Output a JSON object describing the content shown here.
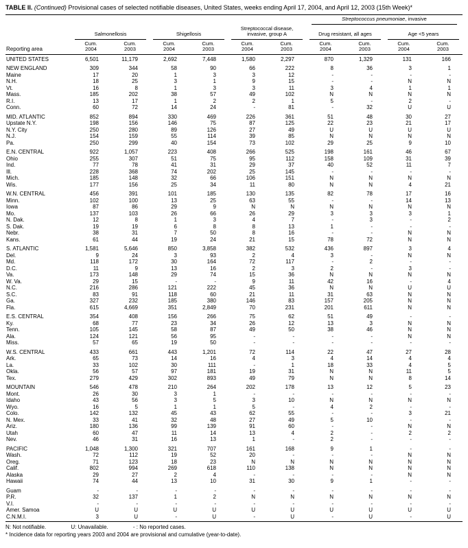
{
  "title": {
    "bold": "TABLE II.",
    "italic": "(Continued)",
    "rest": "Provisional cases of selected notifiable diseases, United States, weeks ending April 17, 2004, and April 12, 2003 (15th Week)*"
  },
  "table": {
    "reporting_area_label": "Reporting area",
    "groups": {
      "salmonellosis": "Salmonellosis",
      "shigellosis": "Shigellosis",
      "strep_a": "Streptococcal disease, invasive, group A",
      "pneumo_italic": "Streptococcus pneumoniae",
      "pneumo_rest": ", invasive",
      "drug_resistant": "Drug resistant, all ages",
      "age_lt5": "Age <5 years"
    },
    "subheader": {
      "cum": "Cum.",
      "year_a": "2004",
      "year_b": "2003"
    },
    "rows": [
      {
        "area": "UNITED STATES",
        "kind": "total",
        "v": [
          "6,501",
          "11,179",
          "2,692",
          "7,448",
          "1,580",
          "2,297",
          "870",
          "1,329",
          "131",
          "166"
        ]
      },
      {
        "kind": "spacer"
      },
      {
        "area": "NEW ENGLAND",
        "kind": "region",
        "v": [
          "309",
          "344",
          "58",
          "90",
          "66",
          "222",
          "8",
          "36",
          "3",
          "1"
        ]
      },
      {
        "area": "Maine",
        "kind": "state",
        "v": [
          "17",
          "20",
          "1",
          "3",
          "3",
          "12",
          "-",
          "-",
          "-",
          "-"
        ]
      },
      {
        "area": "N.H.",
        "kind": "state",
        "v": [
          "18",
          "25",
          "3",
          "1",
          "9",
          "15",
          "-",
          "-",
          "N",
          "N"
        ]
      },
      {
        "area": "Vt.",
        "kind": "state",
        "v": [
          "16",
          "8",
          "1",
          "3",
          "3",
          "11",
          "3",
          "4",
          "1",
          "1"
        ]
      },
      {
        "area": "Mass.",
        "kind": "state",
        "v": [
          "185",
          "202",
          "38",
          "57",
          "49",
          "102",
          "N",
          "N",
          "N",
          "N"
        ]
      },
      {
        "area": "R.I.",
        "kind": "state",
        "v": [
          "13",
          "17",
          "1",
          "2",
          "2",
          "1",
          "5",
          "-",
          "2",
          "-"
        ]
      },
      {
        "area": "Conn.",
        "kind": "state",
        "v": [
          "60",
          "72",
          "14",
          "24",
          "-",
          "81",
          "-",
          "32",
          "U",
          "U"
        ]
      },
      {
        "kind": "spacer"
      },
      {
        "area": "MID. ATLANTIC",
        "kind": "region",
        "v": [
          "852",
          "894",
          "330",
          "469",
          "226",
          "361",
          "51",
          "48",
          "30",
          "27"
        ]
      },
      {
        "area": "Upstate N.Y.",
        "kind": "state",
        "v": [
          "198",
          "156",
          "146",
          "75",
          "87",
          "125",
          "22",
          "23",
          "21",
          "17"
        ]
      },
      {
        "area": "N.Y. City",
        "kind": "state",
        "v": [
          "250",
          "280",
          "89",
          "126",
          "27",
          "49",
          "U",
          "U",
          "U",
          "U"
        ]
      },
      {
        "area": "N.J.",
        "kind": "state",
        "v": [
          "154",
          "159",
          "55",
          "114",
          "39",
          "85",
          "N",
          "N",
          "N",
          "N"
        ]
      },
      {
        "area": "Pa.",
        "kind": "state",
        "v": [
          "250",
          "299",
          "40",
          "154",
          "73",
          "102",
          "29",
          "25",
          "9",
          "10"
        ]
      },
      {
        "kind": "spacer"
      },
      {
        "area": "E.N. CENTRAL",
        "kind": "region",
        "v": [
          "922",
          "1,057",
          "223",
          "408",
          "266",
          "525",
          "198",
          "161",
          "46",
          "67"
        ]
      },
      {
        "area": "Ohio",
        "kind": "state",
        "v": [
          "255",
          "307",
          "51",
          "75",
          "95",
          "112",
          "158",
          "109",
          "31",
          "39"
        ]
      },
      {
        "area": "Ind.",
        "kind": "state",
        "v": [
          "77",
          "78",
          "41",
          "31",
          "29",
          "37",
          "40",
          "52",
          "11",
          "7"
        ]
      },
      {
        "area": "Ill.",
        "kind": "state",
        "v": [
          "228",
          "368",
          "74",
          "202",
          "25",
          "145",
          "-",
          "-",
          "-",
          "-"
        ]
      },
      {
        "area": "Mich.",
        "kind": "state",
        "v": [
          "185",
          "148",
          "32",
          "66",
          "106",
          "151",
          "N",
          "N",
          "N",
          "N"
        ]
      },
      {
        "area": "Wis.",
        "kind": "state",
        "v": [
          "177",
          "156",
          "25",
          "34",
          "11",
          "80",
          "N",
          "N",
          "4",
          "21"
        ]
      },
      {
        "kind": "spacer"
      },
      {
        "area": "W.N. CENTRAL",
        "kind": "region",
        "v": [
          "456",
          "391",
          "101",
          "185",
          "130",
          "135",
          "82",
          "78",
          "17",
          "16"
        ]
      },
      {
        "area": "Minn.",
        "kind": "state",
        "v": [
          "102",
          "100",
          "13",
          "25",
          "63",
          "55",
          "-",
          "-",
          "14",
          "13"
        ]
      },
      {
        "area": "Iowa",
        "kind": "state",
        "v": [
          "87",
          "86",
          "29",
          "9",
          "N",
          "N",
          "N",
          "N",
          "N",
          "N"
        ]
      },
      {
        "area": "Mo.",
        "kind": "state",
        "v": [
          "137",
          "103",
          "26",
          "66",
          "26",
          "29",
          "3",
          "3",
          "3",
          "1"
        ]
      },
      {
        "area": "N. Dak.",
        "kind": "state",
        "v": [
          "12",
          "8",
          "1",
          "3",
          "4",
          "7",
          "-",
          "3",
          "-",
          "2"
        ]
      },
      {
        "area": "S. Dak.",
        "kind": "state",
        "v": [
          "19",
          "19",
          "6",
          "8",
          "8",
          "13",
          "1",
          "-",
          "-",
          "-"
        ]
      },
      {
        "area": "Nebr.",
        "kind": "state",
        "v": [
          "38",
          "31",
          "7",
          "50",
          "8",
          "16",
          "-",
          "-",
          "N",
          "N"
        ]
      },
      {
        "area": "Kans.",
        "kind": "state",
        "v": [
          "61",
          "44",
          "19",
          "24",
          "21",
          "15",
          "78",
          "72",
          "N",
          "N"
        ]
      },
      {
        "kind": "spacer"
      },
      {
        "area": "S. ATLANTIC",
        "kind": "region",
        "v": [
          "1,581",
          "5,646",
          "850",
          "3,858",
          "382",
          "532",
          "436",
          "897",
          "3",
          "4"
        ]
      },
      {
        "area": "Del.",
        "kind": "state",
        "v": [
          "9",
          "24",
          "3",
          "93",
          "2",
          "4",
          "3",
          "-",
          "N",
          "N"
        ]
      },
      {
        "area": "Md.",
        "kind": "state",
        "v": [
          "118",
          "172",
          "30",
          "164",
          "72",
          "117",
          "-",
          "2",
          "-",
          "-"
        ]
      },
      {
        "area": "D.C.",
        "kind": "state",
        "v": [
          "11",
          "9",
          "13",
          "16",
          "2",
          "3",
          "2",
          "-",
          "3",
          "-"
        ]
      },
      {
        "area": "Va.",
        "kind": "state",
        "v": [
          "173",
          "148",
          "29",
          "74",
          "15",
          "36",
          "N",
          "N",
          "N",
          "N"
        ]
      },
      {
        "area": "W. Va.",
        "kind": "state",
        "v": [
          "29",
          "15",
          "-",
          "-",
          "9",
          "11",
          "42",
          "16",
          "-",
          "4"
        ]
      },
      {
        "area": "N.C.",
        "kind": "state",
        "v": [
          "216",
          "286",
          "121",
          "222",
          "45",
          "36",
          "N",
          "N",
          "U",
          "U"
        ]
      },
      {
        "area": "S.C.",
        "kind": "state",
        "v": [
          "83",
          "91",
          "118",
          "60",
          "21",
          "11",
          "31",
          "63",
          "N",
          "N"
        ]
      },
      {
        "area": "Ga.",
        "kind": "state",
        "v": [
          "327",
          "232",
          "185",
          "380",
          "146",
          "83",
          "157",
          "205",
          "N",
          "N"
        ]
      },
      {
        "area": "Fla.",
        "kind": "state",
        "v": [
          "615",
          "4,669",
          "351",
          "2,849",
          "70",
          "231",
          "201",
          "611",
          "N",
          "N"
        ]
      },
      {
        "kind": "spacer"
      },
      {
        "area": "E.S. CENTRAL",
        "kind": "region",
        "v": [
          "354",
          "408",
          "156",
          "266",
          "75",
          "62",
          "51",
          "49",
          "-",
          "-"
        ]
      },
      {
        "area": "Ky.",
        "kind": "state",
        "v": [
          "68",
          "77",
          "23",
          "34",
          "26",
          "12",
          "13",
          "3",
          "N",
          "N"
        ]
      },
      {
        "area": "Tenn.",
        "kind": "state",
        "v": [
          "105",
          "145",
          "58",
          "87",
          "49",
          "50",
          "38",
          "46",
          "N",
          "N"
        ]
      },
      {
        "area": "Ala.",
        "kind": "state",
        "v": [
          "124",
          "121",
          "56",
          "95",
          "-",
          "-",
          "-",
          "-",
          "N",
          "N"
        ]
      },
      {
        "area": "Miss.",
        "kind": "state",
        "v": [
          "57",
          "65",
          "19",
          "50",
          "-",
          "-",
          "-",
          "-",
          "-",
          "-"
        ]
      },
      {
        "kind": "spacer"
      },
      {
        "area": "W.S. CENTRAL",
        "kind": "region",
        "v": [
          "433",
          "661",
          "443",
          "1,201",
          "72",
          "114",
          "22",
          "47",
          "27",
          "28"
        ]
      },
      {
        "area": "Ark.",
        "kind": "state",
        "v": [
          "65",
          "73",
          "14",
          "16",
          "4",
          "3",
          "4",
          "14",
          "4",
          "4"
        ]
      },
      {
        "area": "La.",
        "kind": "state",
        "v": [
          "33",
          "102",
          "30",
          "111",
          "-",
          "1",
          "18",
          "33",
          "4",
          "5"
        ]
      },
      {
        "area": "Okla.",
        "kind": "state",
        "v": [
          "56",
          "57",
          "97",
          "181",
          "19",
          "31",
          "N",
          "N",
          "11",
          "5"
        ]
      },
      {
        "area": "Tex.",
        "kind": "state",
        "v": [
          "279",
          "429",
          "302",
          "893",
          "49",
          "79",
          "N",
          "N",
          "8",
          "14"
        ]
      },
      {
        "kind": "spacer"
      },
      {
        "area": "MOUNTAIN",
        "kind": "region",
        "v": [
          "546",
          "478",
          "210",
          "264",
          "202",
          "178",
          "13",
          "12",
          "5",
          "23"
        ]
      },
      {
        "area": "Mont.",
        "kind": "state",
        "v": [
          "26",
          "30",
          "3",
          "1",
          "-",
          "-",
          "-",
          "-",
          "-",
          "-"
        ]
      },
      {
        "area": "Idaho",
        "kind": "state",
        "v": [
          "43",
          "56",
          "3",
          "5",
          "3",
          "10",
          "N",
          "N",
          "N",
          "N"
        ]
      },
      {
        "area": "Wyo.",
        "kind": "state",
        "v": [
          "16",
          "5",
          "1",
          "1",
          "5",
          "-",
          "4",
          "2",
          "-",
          "-"
        ]
      },
      {
        "area": "Colo.",
        "kind": "state",
        "v": [
          "142",
          "132",
          "45",
          "43",
          "62",
          "55",
          "-",
          "-",
          "3",
          "21"
        ]
      },
      {
        "area": "N. Mex.",
        "kind": "state",
        "v": [
          "33",
          "41",
          "32",
          "48",
          "27",
          "49",
          "5",
          "10",
          "-",
          "-"
        ]
      },
      {
        "area": "Ariz.",
        "kind": "state",
        "v": [
          "180",
          "136",
          "99",
          "139",
          "91",
          "60",
          "-",
          "-",
          "N",
          "N"
        ]
      },
      {
        "area": "Utah",
        "kind": "state",
        "v": [
          "60",
          "47",
          "11",
          "14",
          "13",
          "4",
          "2",
          "-",
          "2",
          "2"
        ]
      },
      {
        "area": "Nev.",
        "kind": "state",
        "v": [
          "46",
          "31",
          "16",
          "13",
          "1",
          "-",
          "2",
          "-",
          "-",
          "-"
        ]
      },
      {
        "kind": "spacer"
      },
      {
        "area": "PACIFIC",
        "kind": "region",
        "v": [
          "1,048",
          "1,300",
          "321",
          "707",
          "161",
          "168",
          "9",
          "1",
          "-",
          "-"
        ]
      },
      {
        "area": "Wash.",
        "kind": "state",
        "v": [
          "72",
          "112",
          "19",
          "52",
          "20",
          "-",
          "-",
          "-",
          "N",
          "N"
        ]
      },
      {
        "area": "Oreg.",
        "kind": "state",
        "v": [
          "71",
          "123",
          "18",
          "23",
          "N",
          "N",
          "N",
          "N",
          "N",
          "N"
        ]
      },
      {
        "area": "Calif.",
        "kind": "state",
        "v": [
          "802",
          "994",
          "269",
          "618",
          "110",
          "138",
          "N",
          "N",
          "N",
          "N"
        ]
      },
      {
        "area": "Alaska",
        "kind": "state",
        "v": [
          "29",
          "27",
          "2",
          "4",
          "-",
          "-",
          "-",
          "-",
          "N",
          "N"
        ]
      },
      {
        "area": "Hawaii",
        "kind": "state",
        "v": [
          "74",
          "44",
          "13",
          "10",
          "31",
          "30",
          "9",
          "1",
          "-",
          "-"
        ]
      },
      {
        "kind": "spacer"
      },
      {
        "area": "Guam",
        "kind": "state",
        "v": [
          "-",
          "-",
          "-",
          "-",
          "-",
          "-",
          "-",
          "-",
          "-",
          "-"
        ]
      },
      {
        "area": "P.R.",
        "kind": "state",
        "v": [
          "32",
          "137",
          "1",
          "2",
          "N",
          "N",
          "N",
          "N",
          "N",
          "N"
        ]
      },
      {
        "area": "V.I.",
        "kind": "state",
        "v": [
          "-",
          "-",
          "-",
          "-",
          "-",
          "-",
          "-",
          "-",
          "-",
          "-"
        ]
      },
      {
        "area": "Amer. Samoa",
        "kind": "state",
        "v": [
          "U",
          "U",
          "U",
          "U",
          "U",
          "U",
          "U",
          "U",
          "U",
          "U"
        ]
      },
      {
        "area": "C.N.M.I.",
        "kind": "state",
        "v": [
          "3",
          "U",
          "-",
          "U",
          "-",
          "U",
          "-",
          "U",
          "-",
          "U"
        ]
      }
    ]
  },
  "legend": [
    "N: Not notifiable.",
    "U: Unavailable.",
    "- : No reported cases."
  ],
  "footnote": "* Incidence data for reporting years 2003 and 2004 are provisional and cumulative (year-to-date)."
}
